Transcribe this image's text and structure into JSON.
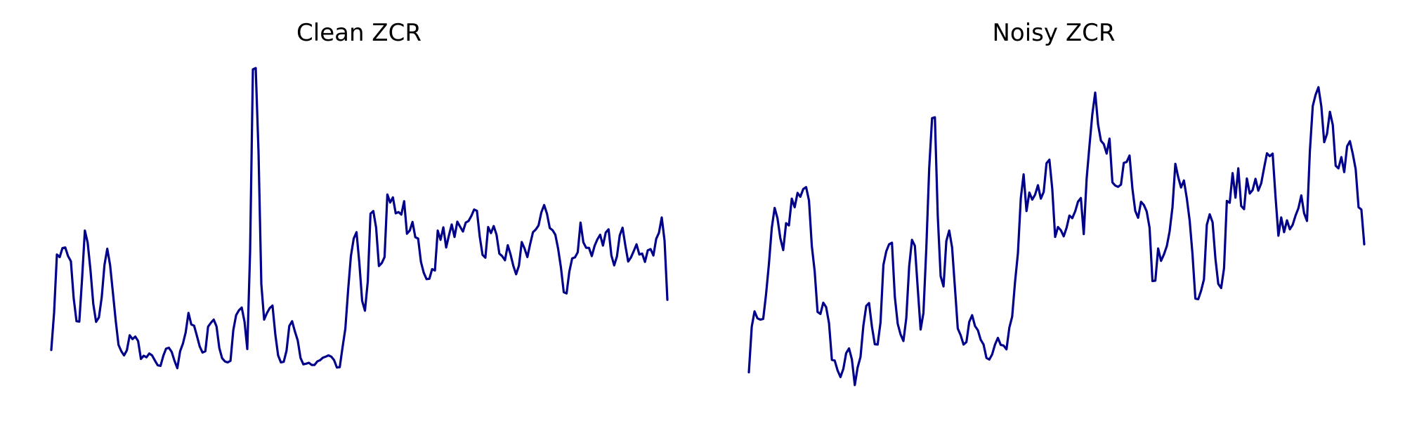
{
  "chart_data": [
    {
      "type": "line",
      "title": "Clean ZCR",
      "axes_visible": false,
      "grid": false,
      "color": "#00008b",
      "series": [
        {
          "values": [
            0.117,
            0.234,
            0.416,
            0.408,
            0.436,
            0.438,
            0.411,
            0.395,
            0.279,
            0.207,
            0.206,
            0.339,
            0.491,
            0.453,
            0.367,
            0.261,
            0.205,
            0.219,
            0.282,
            0.383,
            0.434,
            0.383,
            0.297,
            0.209,
            0.133,
            0.113,
            0.1,
            0.116,
            0.163,
            0.151,
            0.159,
            0.145,
            0.089,
            0.099,
            0.094,
            0.106,
            0.1,
            0.084,
            0.069,
            0.067,
            0.099,
            0.121,
            0.124,
            0.111,
            0.083,
            0.06,
            0.113,
            0.137,
            0.172,
            0.233,
            0.197,
            0.193,
            0.161,
            0.128,
            0.109,
            0.113,
            0.19,
            0.202,
            0.212,
            0.191,
            0.123,
            0.091,
            0.081,
            0.078,
            0.083,
            0.179,
            0.226,
            0.241,
            0.25,
            0.205,
            0.12,
            0.424,
            0.996,
            1.0,
            0.737,
            0.323,
            0.212,
            0.232,
            0.248,
            0.256,
            0.166,
            0.1,
            0.078,
            0.08,
            0.115,
            0.192,
            0.207,
            0.175,
            0.147,
            0.092,
            0.072,
            0.074,
            0.077,
            0.07,
            0.07,
            0.081,
            0.085,
            0.093,
            0.096,
            0.1,
            0.096,
            0.085,
            0.062,
            0.063,
            0.125,
            0.184,
            0.306,
            0.411,
            0.466,
            0.486,
            0.39,
            0.271,
            0.24,
            0.331,
            0.544,
            0.552,
            0.5,
            0.38,
            0.389,
            0.408,
            0.604,
            0.579,
            0.595,
            0.545,
            0.549,
            0.541,
            0.583,
            0.481,
            0.491,
            0.518,
            0.47,
            0.466,
            0.393,
            0.359,
            0.339,
            0.34,
            0.37,
            0.366,
            0.491,
            0.462,
            0.501,
            0.438,
            0.476,
            0.51,
            0.471,
            0.519,
            0.503,
            0.488,
            0.516,
            0.521,
            0.537,
            0.557,
            0.553,
            0.472,
            0.415,
            0.406,
            0.502,
            0.483,
            0.505,
            0.478,
            0.419,
            0.411,
            0.398,
            0.445,
            0.416,
            0.38,
            0.354,
            0.381,
            0.455,
            0.435,
            0.408,
            0.449,
            0.486,
            0.494,
            0.507,
            0.548,
            0.571,
            0.544,
            0.499,
            0.492,
            0.478,
            0.434,
            0.375,
            0.298,
            0.294,
            0.363,
            0.404,
            0.407,
            0.423,
            0.516,
            0.454,
            0.437,
            0.437,
            0.411,
            0.443,
            0.463,
            0.478,
            0.444,
            0.485,
            0.495,
            0.413,
            0.382,
            0.41,
            0.476,
            0.5,
            0.444,
            0.394,
            0.407,
            0.427,
            0.448,
            0.416,
            0.419,
            0.393,
            0.429,
            0.433,
            0.413,
            0.465,
            0.484,
            0.532,
            0.459,
            0.274
          ]
        }
      ]
    },
    {
      "type": "line",
      "title": "Noisy ZCR",
      "axes_visible": false,
      "grid": false,
      "color": "#00008b",
      "series": [
        {
          "values": [
            0.047,
            0.19,
            0.238,
            0.216,
            0.212,
            0.214,
            0.29,
            0.385,
            0.499,
            0.562,
            0.53,
            0.467,
            0.43,
            0.514,
            0.507,
            0.591,
            0.564,
            0.609,
            0.597,
            0.621,
            0.627,
            0.585,
            0.443,
            0.363,
            0.236,
            0.23,
            0.265,
            0.251,
            0.201,
            0.086,
            0.084,
            0.053,
            0.032,
            0.058,
            0.107,
            0.122,
            0.087,
            0.007,
            0.062,
            0.095,
            0.193,
            0.255,
            0.264,
            0.19,
            0.135,
            0.134,
            0.203,
            0.383,
            0.426,
            0.448,
            0.453,
            0.283,
            0.199,
            0.166,
            0.145,
            0.217,
            0.379,
            0.462,
            0.443,
            0.31,
            0.181,
            0.233,
            0.436,
            0.686,
            0.843,
            0.846,
            0.537,
            0.348,
            0.316,
            0.458,
            0.491,
            0.438,
            0.31,
            0.184,
            0.163,
            0.134,
            0.142,
            0.205,
            0.226,
            0.192,
            0.179,
            0.149,
            0.134,
            0.092,
            0.087,
            0.103,
            0.134,
            0.155,
            0.133,
            0.131,
            0.119,
            0.187,
            0.221,
            0.33,
            0.42,
            0.592,
            0.667,
            0.552,
            0.61,
            0.588,
            0.603,
            0.633,
            0.591,
            0.612,
            0.702,
            0.713,
            0.621,
            0.471,
            0.502,
            0.492,
            0.473,
            0.5,
            0.538,
            0.53,
            0.551,
            0.582,
            0.593,
            0.48,
            0.653,
            0.758,
            0.855,
            0.923,
            0.823,
            0.772,
            0.762,
            0.732,
            0.779,
            0.642,
            0.632,
            0.628,
            0.635,
            0.703,
            0.706,
            0.726,
            0.622,
            0.553,
            0.531,
            0.581,
            0.571,
            0.551,
            0.5,
            0.333,
            0.334,
            0.435,
            0.396,
            0.416,
            0.442,
            0.488,
            0.564,
            0.7,
            0.658,
            0.626,
            0.648,
            0.592,
            0.522,
            0.417,
            0.278,
            0.276,
            0.303,
            0.338,
            0.509,
            0.542,
            0.517,
            0.404,
            0.324,
            0.311,
            0.373,
            0.584,
            0.578,
            0.671,
            0.594,
            0.686,
            0.568,
            0.558,
            0.654,
            0.607,
            0.618,
            0.653,
            0.616,
            0.639,
            0.687,
            0.733,
            0.724,
            0.732,
            0.597,
            0.475,
            0.532,
            0.486,
            0.523,
            0.495,
            0.509,
            0.538,
            0.561,
            0.601,
            0.545,
            0.521,
            0.74,
            0.881,
            0.916,
            0.94,
            0.88,
            0.768,
            0.794,
            0.863,
            0.822,
            0.694,
            0.686,
            0.721,
            0.674,
            0.755,
            0.771,
            0.731,
            0.683,
            0.564,
            0.557,
            0.448
          ]
        }
      ]
    }
  ]
}
